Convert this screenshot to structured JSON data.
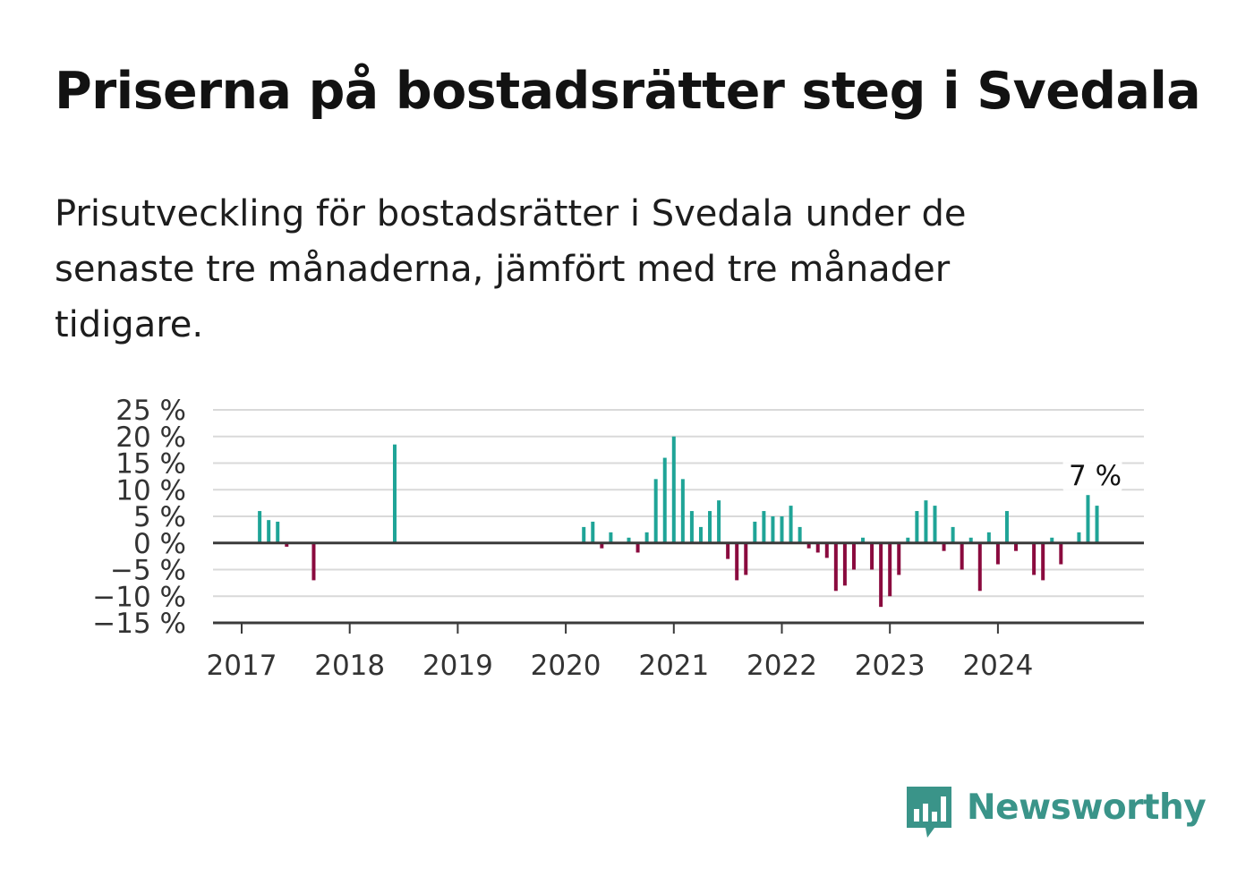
{
  "title": "Priserna på bostadsrätter steg i Svedala",
  "subtitle": "Prisutveckling för bostadsrätter i Svedala under de senaste tre månaderna, jämfört med tre månader tidigare.",
  "brand": {
    "name": "Newsworthy",
    "icon": "newsworthy-logo-icon"
  },
  "colors": {
    "positive": "#1fa497",
    "negative": "#8a0a3e",
    "grid": "#d9d9d9",
    "axis": "#3a3a3a",
    "brand": "#3a9489"
  },
  "chart_data": {
    "type": "bar",
    "title": "",
    "xlabel": "",
    "ylabel": "",
    "ylim": [
      -15,
      25
    ],
    "y_ticks": [
      25,
      20,
      15,
      10,
      5,
      0,
      -5,
      -10,
      -15
    ],
    "y_tick_labels": [
      "25 %",
      "20 %",
      "15 %",
      "10 %",
      "5 %",
      "0 %",
      "−5 %",
      "−10 %",
      "−15 %"
    ],
    "x_ticks": [
      "2017",
      "2018",
      "2019",
      "2020",
      "2021",
      "2022",
      "2023",
      "2024"
    ],
    "annotation": {
      "label": "7 %",
      "date": "2024-12"
    },
    "grid": true,
    "x": [
      "2017-03",
      "2017-04",
      "2017-05",
      "2017-06",
      "2017-09",
      "2018-06",
      "2020-03",
      "2020-04",
      "2020-05",
      "2020-06",
      "2020-08",
      "2020-09",
      "2020-10",
      "2020-11",
      "2020-12",
      "2021-01",
      "2021-02",
      "2021-03",
      "2021-04",
      "2021-05",
      "2021-06",
      "2021-07",
      "2021-08",
      "2021-09",
      "2021-10",
      "2021-11",
      "2021-12",
      "2022-01",
      "2022-02",
      "2022-03",
      "2022-04",
      "2022-05",
      "2022-06",
      "2022-07",
      "2022-08",
      "2022-09",
      "2022-10",
      "2022-11",
      "2022-12",
      "2023-01",
      "2023-02",
      "2023-03",
      "2023-04",
      "2023-05",
      "2023-06",
      "2023-07",
      "2023-08",
      "2023-09",
      "2023-10",
      "2023-11",
      "2023-12",
      "2024-01",
      "2024-02",
      "2024-03",
      "2024-05",
      "2024-06",
      "2024-07",
      "2024-08",
      "2024-10",
      "2024-11",
      "2024-12"
    ],
    "values": [
      6,
      4.3,
      4,
      -0.7,
      -7,
      18.5,
      3,
      4,
      -1,
      2,
      1,
      -1.8,
      2,
      12,
      16,
      20,
      12,
      6,
      3,
      6,
      8,
      -3,
      -7,
      -6,
      4,
      6,
      5,
      5,
      7,
      3,
      -1,
      -1.8,
      -2.8,
      -9,
      -8,
      -5,
      1,
      -5,
      -12,
      -10,
      -6,
      1,
      6,
      8,
      7,
      -1.5,
      3,
      -5,
      1,
      -9,
      2,
      -4,
      6,
      -1.5,
      -6,
      -7,
      1,
      -4,
      2,
      9,
      7
    ]
  }
}
